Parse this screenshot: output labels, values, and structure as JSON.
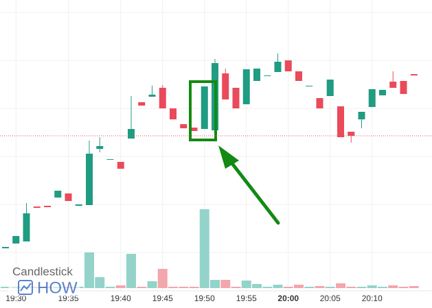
{
  "chart_data": {
    "type": "candlestick",
    "categories": [
      null,
      "19:30",
      null,
      null,
      null,
      null,
      "19:35",
      null,
      null,
      null,
      null,
      "19:40",
      null,
      null,
      null,
      "19:45",
      null,
      null,
      null,
      "19:50",
      null,
      null,
      null,
      "19:55",
      null,
      null,
      null,
      "20:00",
      null,
      null,
      null,
      "20:05",
      null,
      null,
      null,
      "20:10",
      null,
      null,
      null,
      null
    ],
    "open": [
      98,
      105,
      108,
      159,
      160,
      172,
      178,
      160,
      161,
      243,
      227,
      224,
      258,
      311,
      319,
      332,
      302,
      279,
      274,
      272,
      270,
      353,
      332,
      308,
      342,
      349,
      355,
      372,
      356,
      334,
      317,
      320,
      305,
      268,
      286,
      304,
      321,
      341,
      342,
      352
    ],
    "close": [
      100,
      116,
      149,
      157,
      158,
      182,
      167,
      162,
      236,
      247,
      228,
      214,
      272,
      306,
      322,
      302,
      286,
      273,
      269,
      334,
      368,
      315,
      302,
      359,
      360,
      350,
      370,
      356,
      342,
      335,
      302,
      344,
      260,
      262,
      297,
      330,
      329,
      332,
      323,
      350
    ],
    "high": [
      100,
      116,
      164,
      159,
      160,
      182,
      178,
      162,
      255,
      260,
      228,
      224,
      320,
      311,
      335,
      336,
      302,
      279,
      274,
      334,
      374,
      360,
      332,
      359,
      360,
      350,
      382,
      372,
      356,
      335,
      317,
      344,
      305,
      268,
      297,
      330,
      329,
      356,
      342,
      352
    ],
    "low": [
      98,
      105,
      108,
      157,
      158,
      172,
      167,
      160,
      161,
      238,
      227,
      214,
      258,
      306,
      319,
      302,
      286,
      273,
      269,
      272,
      270,
      315,
      302,
      308,
      342,
      349,
      355,
      356,
      342,
      334,
      302,
      320,
      260,
      252,
      273,
      304,
      321,
      332,
      323,
      350
    ],
    "volume": [
      2,
      2,
      2,
      2,
      2,
      2,
      2,
      2,
      52,
      16,
      2,
      4,
      50,
      2,
      10,
      28,
      2,
      2,
      2,
      115,
      12,
      12,
      2,
      11,
      6,
      2,
      5,
      2,
      5,
      2,
      3,
      2,
      7,
      2,
      2,
      4,
      2,
      4,
      2,
      3
    ],
    "up_color": "#1f9c82",
    "down_color": "#ea4a5a",
    "up_volume_color": "#93d3ca",
    "down_volume_color": "#f3a6ab",
    "price_line": 262,
    "ylim": [
      11,
      460
    ],
    "volume_lim": [
      0,
      420
    ],
    "watermark": {
      "line1": "Candlestick",
      "line2": "HOW"
    }
  }
}
